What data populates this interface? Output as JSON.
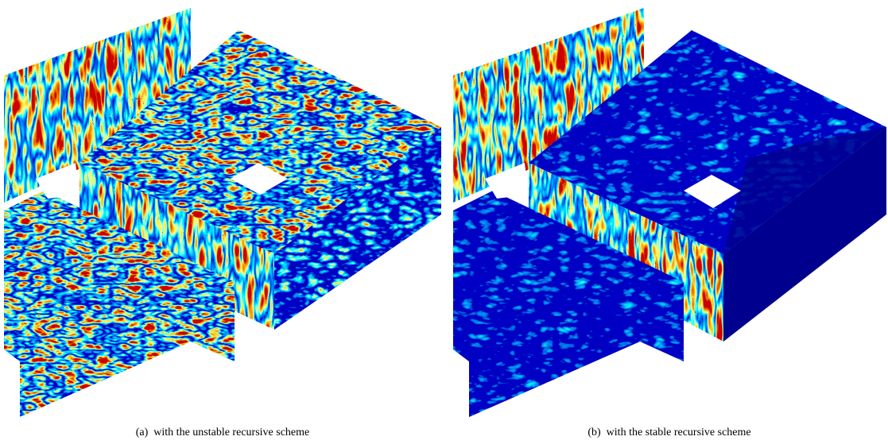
{
  "figure": {
    "panels": [
      {
        "caption": "(a)  with the unstable recursive scheme"
      },
      {
        "caption": "(b)  with the stable recursive scheme"
      }
    ]
  }
}
